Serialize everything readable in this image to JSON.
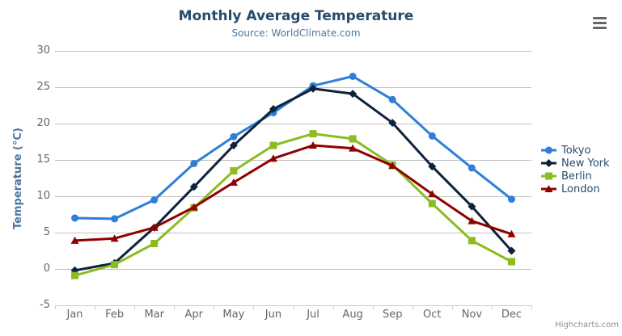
{
  "chart_data": {
    "type": "line",
    "title": "Monthly Average Temperature",
    "subtitle": "Source: WorldClimate.com",
    "ylabel": "Temperature (°C)",
    "xlabel": "",
    "categories": [
      "Jan",
      "Feb",
      "Mar",
      "Apr",
      "May",
      "Jun",
      "Jul",
      "Aug",
      "Sep",
      "Oct",
      "Nov",
      "Dec"
    ],
    "ylim": [
      -5,
      30
    ],
    "yticks": [
      30,
      25,
      20,
      15,
      10,
      5,
      0,
      -5
    ],
    "grid": true,
    "legend_position": "right",
    "series": [
      {
        "name": "Tokyo",
        "color": "#2f7ed8",
        "marker": "circle",
        "values": [
          7.0,
          6.9,
          9.5,
          14.5,
          18.2,
          21.5,
          25.2,
          26.5,
          23.3,
          18.3,
          13.9,
          9.6
        ]
      },
      {
        "name": "New York",
        "color": "#0d233a",
        "marker": "diamond",
        "values": [
          -0.2,
          0.8,
          5.7,
          11.3,
          17.0,
          22.0,
          24.8,
          24.1,
          20.1,
          14.1,
          8.6,
          2.5
        ]
      },
      {
        "name": "Berlin",
        "color": "#8bbc21",
        "marker": "square",
        "values": [
          -0.9,
          0.6,
          3.5,
          8.4,
          13.5,
          17.0,
          18.6,
          17.9,
          14.3,
          9.0,
          3.9,
          1.0
        ]
      },
      {
        "name": "London",
        "color": "#910000",
        "marker": "triangle",
        "values": [
          3.9,
          4.2,
          5.7,
          8.5,
          11.9,
          15.2,
          17.0,
          16.6,
          14.2,
          10.3,
          6.6,
          4.8
        ]
      }
    ],
    "credits": "Highcharts.com"
  },
  "icons": {
    "export_menu": "hamburger-icon"
  },
  "colors": {
    "title_text": "#274b6d",
    "subtitle_text": "#4d759e",
    "axis_label_text": "#666666",
    "axis_title_text": "#4d759e",
    "grid_line": "#c0c0c0",
    "axis_line": "#c0d0e0",
    "legend_text": "#274b6d",
    "credits_text": "#909090"
  }
}
